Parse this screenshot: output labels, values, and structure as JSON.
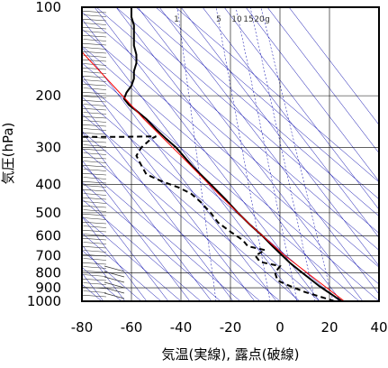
{
  "chart_data": {
    "type": "line",
    "xlabel": "気温(実線), 露点(破線)",
    "ylabel": "気圧(hPa)",
    "xlim": [
      -80,
      40
    ],
    "ylim": [
      1000,
      100
    ],
    "y_scale": "log",
    "x_ticks": [
      "-80",
      "-60",
      "-40",
      "-20",
      "0",
      "20",
      "40"
    ],
    "y_ticks": [
      "100",
      "200",
      "300",
      "400",
      "500",
      "600",
      "700",
      "800",
      "900",
      "1000"
    ],
    "mixing_ratio_labels": [
      "1",
      "5",
      "10",
      "15",
      "20",
      "g"
    ],
    "grid": true,
    "colors": {
      "temperature": "#000000",
      "dewpoint": "#000000",
      "reference": "#ff0000",
      "adiabats": "#0000aa",
      "grid": "#000000",
      "wind_barbs": "#333333"
    },
    "series": [
      {
        "key": "temperature",
        "style": "solid",
        "points": [
          [
            25,
            1000
          ],
          [
            23,
            975
          ],
          [
            19,
            925
          ],
          [
            16,
            890
          ],
          [
            13,
            850
          ],
          [
            9,
            800
          ],
          [
            4,
            740
          ],
          [
            1,
            700
          ],
          [
            -3,
            650
          ],
          [
            -7,
            600
          ],
          [
            -12,
            550
          ],
          [
            -17,
            500
          ],
          [
            -22,
            450
          ],
          [
            -28,
            400
          ],
          [
            -35,
            350
          ],
          [
            -42,
            300
          ],
          [
            -46,
            280
          ],
          [
            -50,
            260
          ],
          [
            -54,
            240
          ],
          [
            -58,
            225
          ],
          [
            -61,
            215
          ],
          [
            -63,
            205
          ],
          [
            -62,
            195
          ],
          [
            -60,
            185
          ],
          [
            -59,
            175
          ],
          [
            -59,
            165
          ],
          [
            -58,
            155
          ],
          [
            -58,
            145
          ],
          [
            -59,
            135
          ],
          [
            -59,
            125
          ],
          [
            -59,
            115
          ],
          [
            -60,
            108
          ],
          [
            -60,
            100
          ]
        ]
      },
      {
        "key": "dewpoint",
        "style": "dashed",
        "points": [
          [
            22,
            1000
          ],
          [
            18,
            975
          ],
          [
            10,
            930
          ],
          [
            3,
            880
          ],
          [
            -1,
            850
          ],
          [
            -2,
            800
          ],
          [
            0,
            760
          ],
          [
            -8,
            735
          ],
          [
            -10,
            700
          ],
          [
            -6,
            670
          ],
          [
            -13,
            650
          ],
          [
            -15,
            620
          ],
          [
            -20,
            580
          ],
          [
            -25,
            540
          ],
          [
            -28,
            500
          ],
          [
            -30,
            480
          ],
          [
            -32,
            460
          ],
          [
            -36,
            430
          ],
          [
            -41,
            410
          ],
          [
            -48,
            390
          ],
          [
            -54,
            370
          ],
          [
            -56,
            345
          ],
          [
            -58,
            320
          ],
          [
            -56,
            300
          ],
          [
            -52,
            280
          ],
          [
            -50,
            275
          ],
          [
            -63,
            276
          ],
          [
            -80,
            276
          ]
        ]
      },
      {
        "key": "reference",
        "style": "solid",
        "points": [
          [
            26,
            1000
          ],
          [
            15,
            850
          ],
          [
            2,
            700
          ],
          [
            -12,
            550
          ],
          [
            -25,
            430
          ],
          [
            -40,
            320
          ],
          [
            -55,
            240
          ],
          [
            -70,
            175
          ],
          [
            -80,
            142
          ]
        ]
      }
    ]
  }
}
